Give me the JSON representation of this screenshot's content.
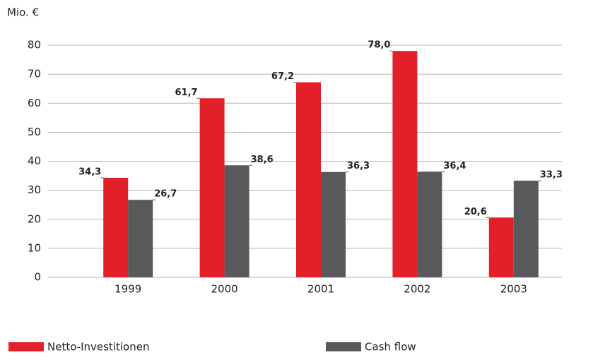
{
  "chart_data": {
    "type": "bar",
    "y_label": "Mio. €",
    "categories": [
      "1999",
      "2000",
      "2001",
      "2002",
      "2003"
    ],
    "series": [
      {
        "name": "Netto-Investitionen",
        "color": "#e3202a",
        "values": [
          34.3,
          61.7,
          67.2,
          78.0,
          20.6
        ],
        "value_labels": [
          "34,3",
          "61,7",
          "67,2",
          "78,0",
          "20,6"
        ]
      },
      {
        "name": "Cash flow",
        "color": "#58595b",
        "values": [
          26.7,
          38.6,
          36.3,
          36.4,
          33.3
        ],
        "value_labels": [
          "26,7",
          "38,6",
          "36,3",
          "36,4",
          "33,3"
        ]
      }
    ],
    "ylim": [
      0,
      80
    ],
    "yticks": [
      0,
      10,
      20,
      30,
      40,
      50,
      60,
      70,
      80
    ],
    "grid": true,
    "legend": "bottom"
  }
}
